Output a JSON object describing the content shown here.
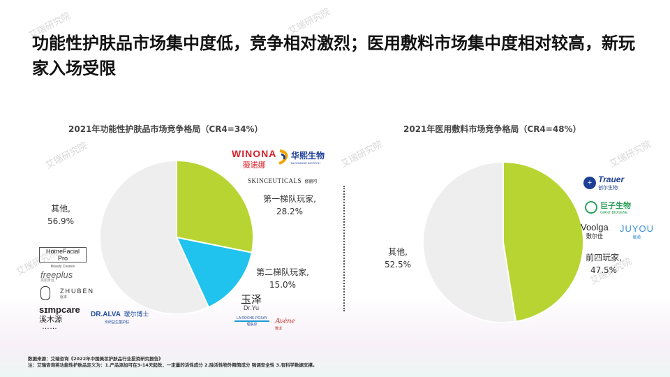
{
  "page_title": "功能性护肤品市场集中度低，竞争相对激烈；医用敷料市场集中度相对较高，新玩家入场受限",
  "watermark": "艾瑞研究院",
  "colors": {
    "green": "#b8d432",
    "blue": "#1fc3ee",
    "grey": "#eeeeee",
    "winona_red": "#d3232a",
    "bloomage_blue": "#1e3f95",
    "green_logo": "#2ca05a"
  },
  "chart_data": [
    {
      "type": "pie",
      "title": "2021年功能性护肤品市场竞争格局（CR4=34%）",
      "slices": [
        {
          "label": "第一梯队玩家,",
          "value_text": "28.2%",
          "value": 28.2,
          "color": "#b8d432"
        },
        {
          "label": "第二梯队玩家,",
          "value_text": "15.0%",
          "value": 15.0,
          "color": "#1fc3ee"
        },
        {
          "label": "其他,",
          "value_text": "56.9%",
          "value": 56.9,
          "color": "#eeeeee"
        }
      ]
    },
    {
      "type": "pie",
      "title": "2021年医用敷料市场竞争格局（CR4=48%）",
      "slices": [
        {
          "label": "前四玩家,",
          "value_text": "47.5%",
          "value": 47.5,
          "color": "#b8d432"
        },
        {
          "label": "其他,",
          "value_text": "52.5%",
          "value": 52.5,
          "color": "#eeeeee"
        }
      ]
    }
  ],
  "logos": {
    "winona": "WINONA",
    "winona_cn": "薇诺娜",
    "bloomage": "华熙生物",
    "bloomage_en": "BLOOMAGE BIOTECH",
    "skinceuticals": "SkinCeuticals",
    "skinceuticals_cn": "修丽可",
    "yuze": "玉泽",
    "yuze_en": "Dr.Yu",
    "laroche": "LA ROCHE-POSAY",
    "laroche_cn": "理肤泉",
    "avene": "Avène",
    "avene_cn": "雅漾",
    "homefacial": "HomeFacial Pro",
    "homefacial_sub": "Beauty Creates",
    "freeplus": "freeplus",
    "freeplus_cn": "芙丽芳丝",
    "zhuben": "ZHUBEN",
    "zhuben_cn": "逐本",
    "simpcare": "sɪmpcare",
    "simpcare_cn": "溪木源",
    "dralva": "DR.ALVA",
    "dralva_cn": "瑷尔博士",
    "dralva_sub": "专研益生菌护肤",
    "ellipsis": "……",
    "trauer": "Trauer",
    "trauer_cn": "创尔生物",
    "giant": "巨子生物",
    "giant_en": "GIANT BIOGENE",
    "voolga": "Voolga",
    "voolga_cn": "敷尔佳",
    "juyou": "JUYOU",
    "juyou_cn": "聚柔"
  },
  "footnote": {
    "source": "数据来源：艾瑞咨询《2022年中国美妆护肤品行业投资研究报告》",
    "note": "注：艾瑞咨询将功能性护肤品定义为：1.产品添加可在3-14天起效，一定量的活性成分 2.除活性物外精简成分 强调安全性 3.有科学数据支撑。"
  }
}
